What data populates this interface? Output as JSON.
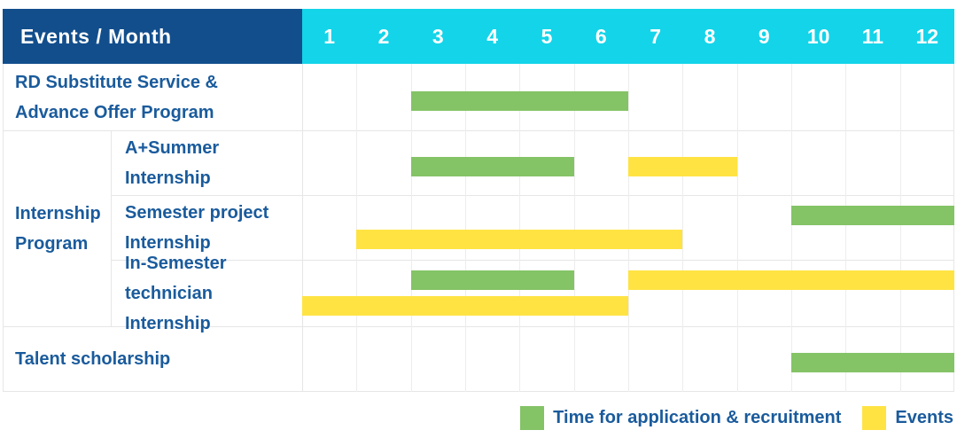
{
  "header": {
    "corner_label": "Events / Month",
    "months": [
      "1",
      "2",
      "3",
      "4",
      "5",
      "6",
      "7",
      "8",
      "9",
      "10",
      "11",
      "12"
    ]
  },
  "row_labels": {
    "rd": [
      "RD Substitute Service &",
      "Advance Offer Program"
    ],
    "group": [
      "Internship",
      "Program"
    ],
    "a_summer": [
      "A+Summer",
      "Internship"
    ],
    "semester_project": [
      "Semester project",
      "Internship"
    ],
    "in_semester": [
      "In-Semester",
      "technician Internship"
    ],
    "talent": [
      "Talent scholarship"
    ]
  },
  "colors": {
    "header_bg": "#124e8c",
    "months_bg": "#14d4e9",
    "header_text": "#ffffff",
    "label_text": "#1a5b9c",
    "grid_line": "#e6e6e6",
    "application_bar": "#84c366",
    "events_bar": "#ffe343"
  },
  "chart_data": {
    "type": "gantt",
    "title": "Events / Month",
    "x_unit": "month",
    "x_ticks": [
      1,
      2,
      3,
      4,
      5,
      6,
      7,
      8,
      9,
      10,
      11,
      12
    ],
    "x_range": [
      1,
      12
    ],
    "grid": true,
    "legend_position": "bottom-right",
    "series": [
      {
        "key": "application",
        "label": "Time for application & recruitment",
        "color": "#84c366"
      },
      {
        "key": "events",
        "label": "Events",
        "color": "#ffe343"
      }
    ],
    "tasks": [
      {
        "row": 1,
        "name": "RD Substitute Service & Advance Offer Program",
        "group": null,
        "bars": [
          {
            "series": "application",
            "start_month": 3,
            "end_month": 6,
            "lane": "middle"
          }
        ]
      },
      {
        "row": 2,
        "name": "A+Summer Internship",
        "group": "Internship Program",
        "bars": [
          {
            "series": "application",
            "start_month": 3,
            "end_month": 5,
            "lane": "middle"
          },
          {
            "series": "events",
            "start_month": 7,
            "end_month": 8,
            "lane": "middle"
          }
        ]
      },
      {
        "row": 3,
        "name": "Semester project Internship",
        "group": "Internship Program",
        "bars": [
          {
            "series": "application",
            "start_month": 10,
            "end_month": 12,
            "lane": "top"
          },
          {
            "series": "events",
            "start_month": 2,
            "end_month": 7,
            "lane": "bottom"
          }
        ]
      },
      {
        "row": 4,
        "name": "In-Semester technician Internship",
        "group": "Internship Program",
        "bars": [
          {
            "series": "application",
            "start_month": 3,
            "end_month": 5,
            "lane": "top"
          },
          {
            "series": "events",
            "start_month": 7,
            "end_month": 12,
            "lane": "top"
          },
          {
            "series": "events",
            "start_month": 1,
            "end_month": 6,
            "lane": "bottom"
          }
        ]
      },
      {
        "row": 5,
        "name": "Talent scholarship",
        "group": null,
        "bars": [
          {
            "series": "application",
            "start_month": 10,
            "end_month": 12,
            "lane": "middle"
          }
        ]
      }
    ]
  }
}
